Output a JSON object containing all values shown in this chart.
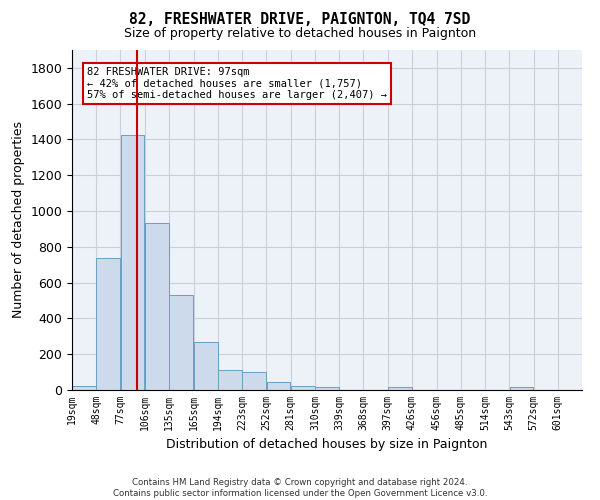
{
  "title": "82, FRESHWATER DRIVE, PAIGNTON, TQ4 7SD",
  "subtitle": "Size of property relative to detached houses in Paignton",
  "xlabel": "Distribution of detached houses by size in Paignton",
  "ylabel": "Number of detached properties",
  "bin_labels": [
    "19sqm",
    "48sqm",
    "77sqm",
    "106sqm",
    "135sqm",
    "165sqm",
    "194sqm",
    "223sqm",
    "252sqm",
    "281sqm",
    "310sqm",
    "339sqm",
    "368sqm",
    "397sqm",
    "426sqm",
    "456sqm",
    "485sqm",
    "514sqm",
    "543sqm",
    "572sqm",
    "601sqm"
  ],
  "bar_heights": [
    25,
    740,
    1425,
    935,
    530,
    270,
    113,
    100,
    43,
    25,
    18,
    0,
    0,
    18,
    0,
    0,
    0,
    0,
    18,
    0,
    0
  ],
  "bar_color": "#ccdaeb",
  "bar_edge_color": "#6a9fc0",
  "grid_color": "#c8d0dc",
  "bg_color": "#edf2f8",
  "vline_color": "#cc0000",
  "annotation_text": "82 FRESHWATER DRIVE: 97sqm\n← 42% of detached houses are smaller (1,757)\n57% of semi-detached houses are larger (2,407) →",
  "annotation_box_color": "#ffffff",
  "annotation_box_edge": "#cc0000",
  "footer": "Contains HM Land Registry data © Crown copyright and database right 2024.\nContains public sector information licensed under the Open Government Licence v3.0.",
  "ylim": [
    0,
    1900
  ],
  "yticks": [
    0,
    200,
    400,
    600,
    800,
    1000,
    1200,
    1400,
    1600,
    1800
  ]
}
